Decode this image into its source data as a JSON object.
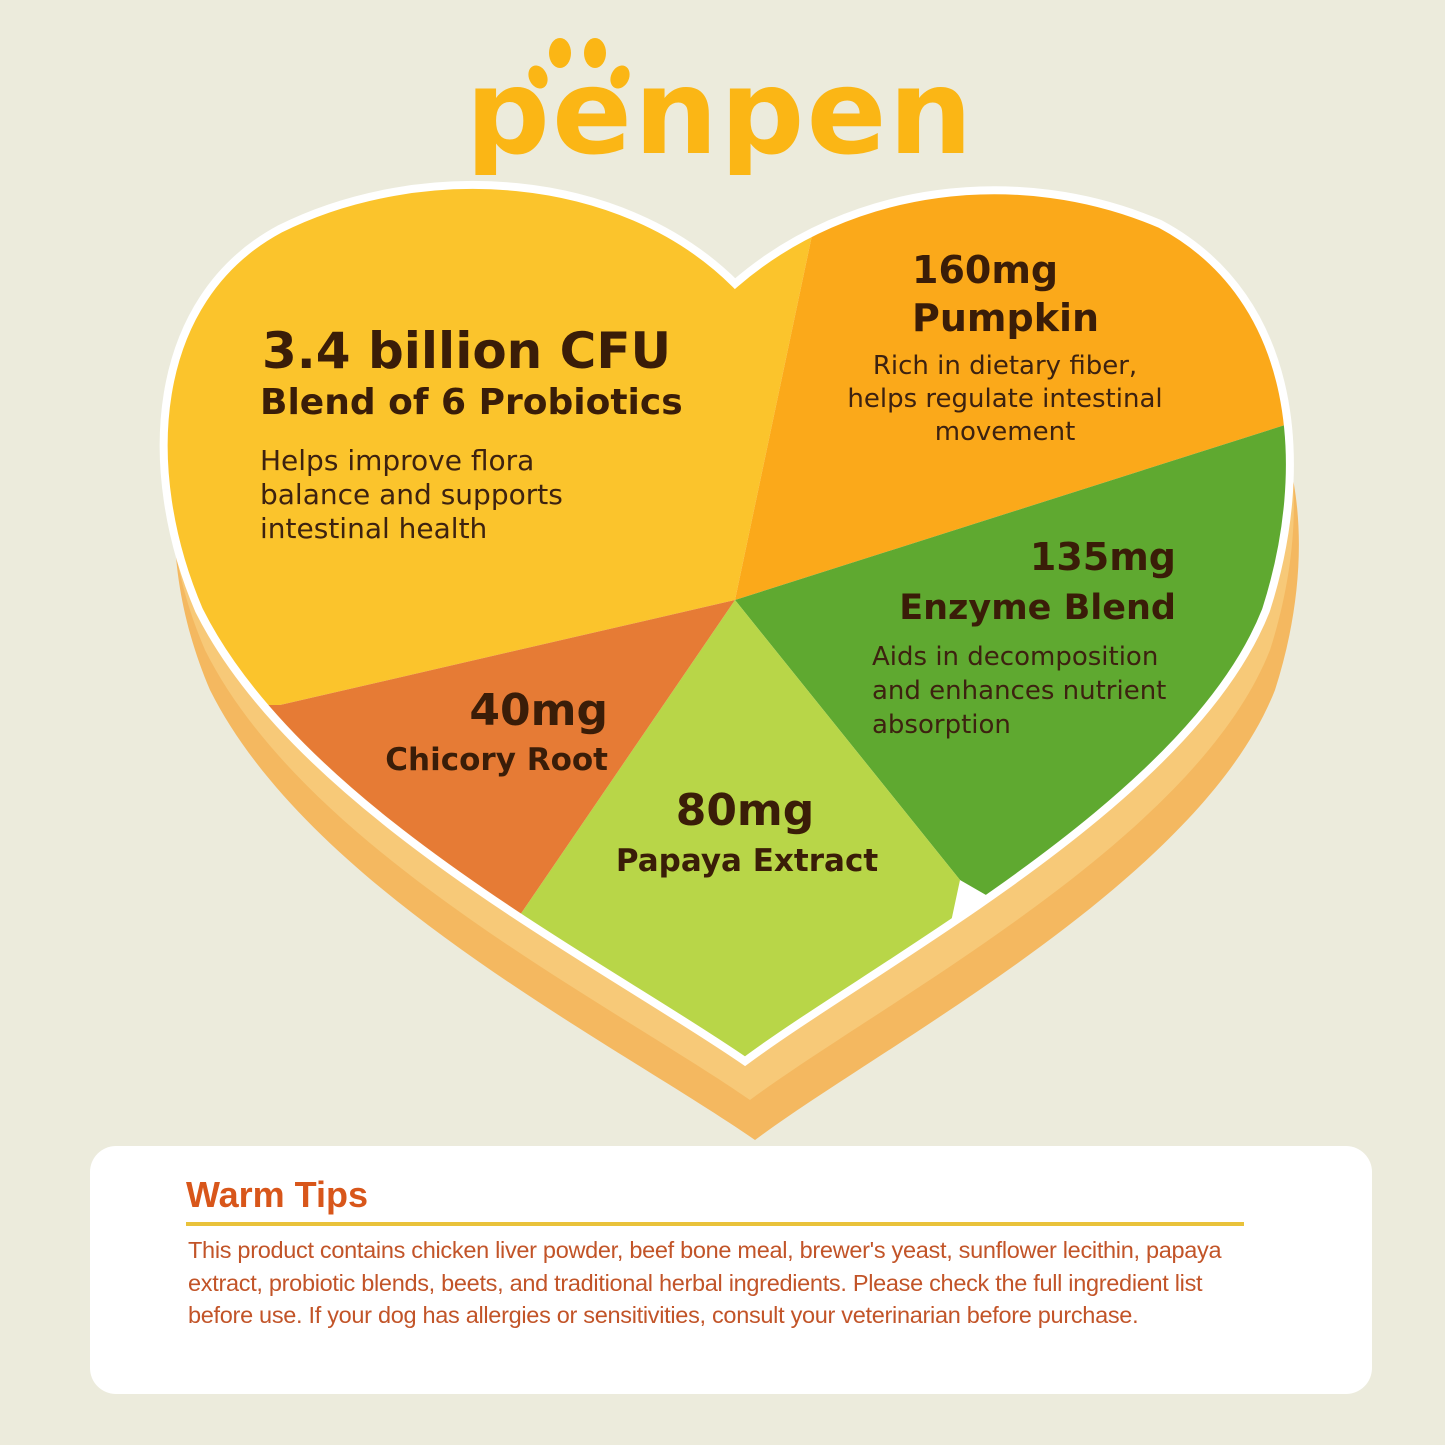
{
  "brand": {
    "logo_text": "penpen",
    "color": "#fbb615"
  },
  "segments": [
    {
      "id": "probiotics",
      "amount": "3.4 billion CFU",
      "name": "Blend of 6 Probiotics",
      "description": [
        "Helps improve flora",
        "balance and supports",
        "intestinal health"
      ],
      "color": "#fbc42c"
    },
    {
      "id": "pumpkin",
      "amount": "160mg",
      "name": "Pumpkin",
      "description": [
        "Rich in dietary fiber,",
        "helps regulate intestinal",
        "movement"
      ],
      "color": "#fba91a"
    },
    {
      "id": "enzyme",
      "amount": "135mg",
      "name": "Enzyme Blend",
      "description": [
        "Aids in decomposition",
        "and enhances nutrient",
        "absorption"
      ],
      "color": "#5fa930"
    },
    {
      "id": "papaya",
      "amount": "80mg",
      "name": "Papaya Extract",
      "color": "#b8d648"
    },
    {
      "id": "chicory",
      "amount": "40mg",
      "name": "Chicory Root",
      "color": "#e67b35"
    }
  ],
  "warm_tips": {
    "title": "Warm Tips",
    "body": "This product contains chicken liver powder, beef bone meal, brewer's yeast, sunflower lecithin, papaya extract, probiotic blends, beets, and traditional herbal ingredients. Please check the full ingredient list before use. If your dog has allergies or sensitivities, consult your veterinarian before purchase."
  }
}
